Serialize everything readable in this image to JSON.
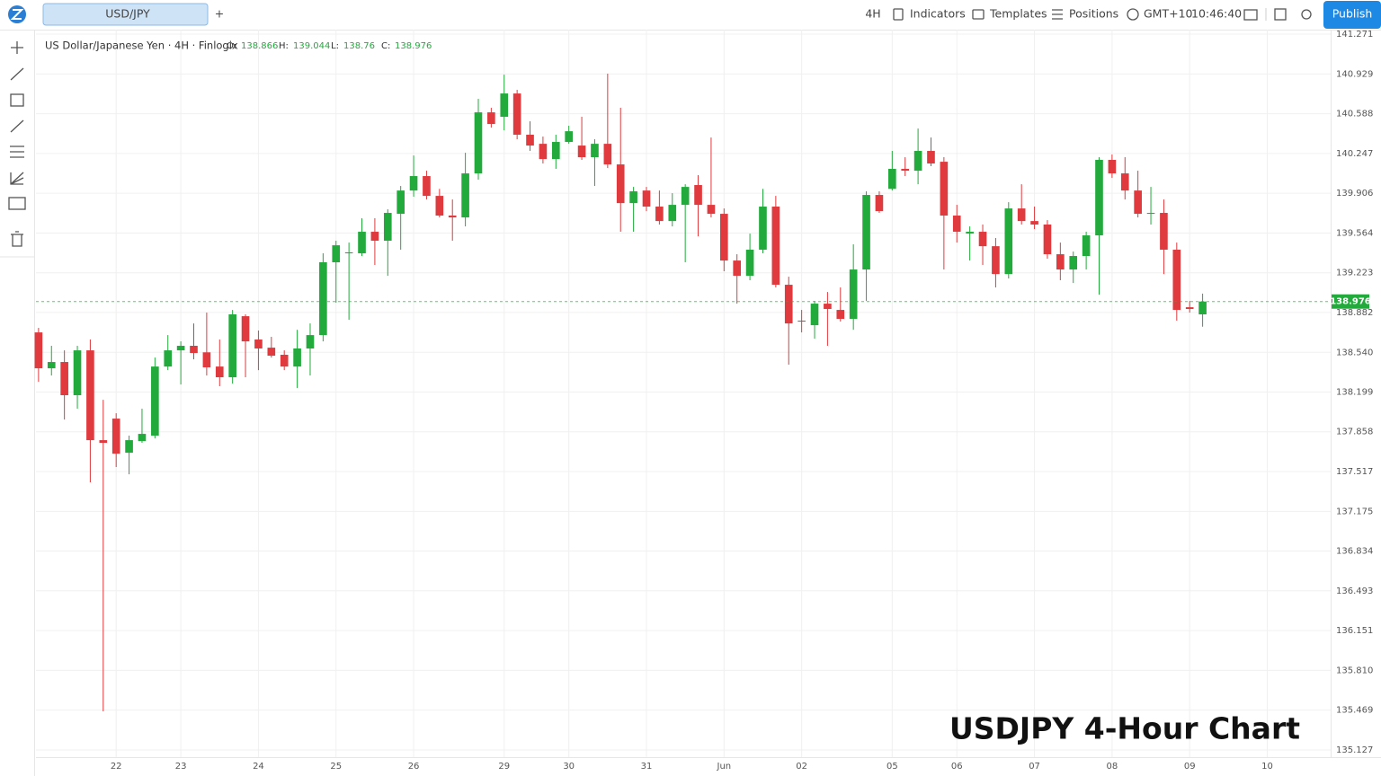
{
  "toolbar": {
    "tab": "USD/JPY",
    "add_tab": "+",
    "interval": "4H",
    "indicators": "Indicators",
    "templates": "Templates",
    "positions": "Positions",
    "timezone": "GMT+10",
    "clock": "10:46:40",
    "publish": "Publish"
  },
  "chart_data": {
    "type": "candlestick",
    "title": "US Dollar/Japanese Yen · 4H · Finlogix",
    "ohlc_labels": [
      "O:",
      "H:",
      "L:",
      "C:"
    ],
    "annotation": "USDJPY 4-Hour Chart",
    "up_color": "#22ab3c",
    "down_color": "#e03a3e",
    "grid": true,
    "open": [
      138.711,
      138.403,
      138.457,
      138.172,
      138.557,
      137.786,
      137.971,
      137.678,
      137.778,
      137.825,
      138.418,
      138.557,
      138.596,
      138.54,
      138.418,
      138.326,
      138.85,
      138.65,
      138.58,
      138.519,
      138.418,
      138.573,
      138.688,
      139.313,
      139.39,
      139.39,
      139.575,
      139.498,
      139.729,
      139.929,
      140.053,
      139.883,
      139.714,
      139.698,
      140.076,
      140.6,
      140.562,
      140.762,
      140.408,
      140.33,
      140.199,
      140.346,
      140.315,
      140.215,
      140.33,
      140.153,
      139.821,
      139.929,
      139.791,
      139.667,
      139.806,
      139.976,
      139.806,
      139.729,
      139.328,
      139.197,
      139.421,
      139.791,
      139.12,
      138.812,
      138.773,
      138.958,
      138.904,
      138.827,
      139.251,
      139.891,
      139.943,
      140.115,
      140.099,
      140.269,
      140.176,
      139.714,
      139.559,
      139.575,
      139.451,
      139.212,
      139.775,
      139.667,
      139.637,
      139.382,
      139.251,
      139.367,
      139.544,
      140.192,
      140.076,
      139.929,
      139.729,
      139.737,
      139.421,
      138.927,
      138.866
    ],
    "high": [
      138.75,
      138.596,
      138.557,
      138.596,
      138.65,
      138.133,
      138.017,
      137.825,
      138.056,
      138.495,
      138.688,
      138.634,
      138.788,
      138.881,
      138.65,
      138.904,
      138.866,
      138.727,
      138.673,
      138.557,
      138.734,
      138.788,
      139.39,
      139.498,
      139.482,
      139.691,
      139.691,
      139.768,
      139.968,
      140.23,
      140.099,
      139.943,
      139.852,
      140.253,
      140.716,
      140.639,
      140.924,
      140.793,
      140.523,
      140.392,
      140.408,
      140.485,
      140.562,
      140.369,
      140.932,
      140.639,
      139.96,
      139.96,
      139.929,
      139.906,
      139.983,
      140.061,
      140.384,
      139.775,
      139.382,
      139.559,
      139.943,
      139.883,
      139.189,
      138.904,
      138.981,
      139.058,
      139.097,
      139.467,
      139.922,
      139.922,
      140.269,
      140.215,
      140.461,
      140.384,
      140.215,
      139.806,
      139.621,
      139.637,
      139.521,
      139.829,
      139.983,
      139.791,
      139.675,
      139.482,
      139.405,
      139.575,
      140.215,
      140.238,
      140.215,
      140.099,
      139.96,
      139.852,
      139.482,
      138.981,
      139.044
    ],
    "low": [
      138.287,
      138.341,
      137.963,
      138.056,
      137.424,
      135.458,
      137.555,
      137.493,
      137.763,
      137.801,
      138.387,
      138.264,
      138.48,
      138.341,
      138.249,
      138.272,
      138.326,
      138.387,
      138.495,
      138.387,
      138.233,
      138.341,
      138.634,
      138.966,
      138.819,
      139.367,
      139.29,
      139.197,
      139.421,
      139.876,
      139.852,
      139.698,
      139.498,
      139.621,
      140.022,
      140.469,
      140.446,
      140.369,
      140.269,
      140.161,
      140.115,
      140.33,
      140.192,
      139.968,
      140.122,
      139.575,
      139.575,
      139.752,
      139.637,
      139.621,
      139.313,
      139.536,
      139.698,
      139.236,
      138.958,
      139.159,
      139.39,
      139.097,
      138.434,
      138.711,
      138.657,
      138.596,
      138.804,
      138.734,
      138.981,
      139.737,
      139.929,
      140.053,
      139.983,
      140.138,
      139.251,
      139.482,
      139.328,
      139.29,
      139.097,
      139.174,
      139.637,
      139.598,
      139.344,
      139.159,
      139.135,
      139.251,
      139.035,
      140.037,
      139.852,
      139.698,
      139.637,
      139.212,
      138.812,
      138.881,
      138.76
    ],
    "close": [
      138.403,
      138.457,
      138.172,
      138.557,
      137.786,
      137.763,
      137.67,
      137.786,
      137.84,
      138.418,
      138.557,
      138.596,
      138.534,
      138.411,
      138.326,
      138.866,
      138.634,
      138.573,
      138.511,
      138.418,
      138.573,
      138.688,
      139.313,
      139.459,
      139.398,
      139.575,
      139.498,
      139.737,
      139.929,
      140.053,
      139.883,
      139.714,
      139.698,
      140.076,
      140.6,
      140.5,
      140.762,
      140.408,
      140.315,
      140.199,
      140.346,
      140.438,
      140.215,
      140.33,
      140.153,
      139.821,
      139.922,
      139.791,
      139.667,
      139.806,
      139.96,
      139.806,
      139.729,
      139.328,
      139.197,
      139.421,
      139.791,
      139.12,
      138.788,
      138.804,
      138.958,
      138.912,
      138.827,
      139.251,
      139.891,
      139.752,
      140.115,
      140.099,
      140.269,
      140.161,
      139.714,
      139.575,
      139.575,
      139.451,
      139.212,
      139.775,
      139.667,
      139.637,
      139.382,
      139.251,
      139.367,
      139.544,
      140.192,
      140.076,
      139.929,
      139.729,
      139.737,
      139.421,
      138.904,
      138.912,
      138.976
    ],
    "xlim": [
      -0.2,
      99.9
    ],
    "xticks": [
      {
        "value": 6,
        "label": "22"
      },
      {
        "value": 11,
        "label": "23"
      },
      {
        "value": 17,
        "label": "24"
      },
      {
        "value": 23,
        "label": "25"
      },
      {
        "value": 29,
        "label": "26"
      },
      {
        "value": 36,
        "label": "29"
      },
      {
        "value": 41,
        "label": "30"
      },
      {
        "value": 47,
        "label": "31"
      },
      {
        "value": 53,
        "label": "Jun"
      },
      {
        "value": 59,
        "label": "02"
      },
      {
        "value": 66,
        "label": "05"
      },
      {
        "value": 71,
        "label": "06"
      },
      {
        "value": 77,
        "label": "07"
      },
      {
        "value": 83,
        "label": "08"
      },
      {
        "value": 89,
        "label": "09"
      },
      {
        "value": 95,
        "label": "10"
      }
    ],
    "ylim": [
      135.065,
      141.31
    ],
    "yticks": [
      141.271,
      140.929,
      140.588,
      140.247,
      139.906,
      139.564,
      139.223,
      138.882,
      {
        "value": 138.54,
        "label": "138.540"
      },
      138.199,
      137.858,
      137.517,
      137.175,
      136.834,
      136.493,
      136.151,
      {
        "value": 135.81,
        "label": "135.810"
      },
      135.469,
      135.127
    ]
  }
}
